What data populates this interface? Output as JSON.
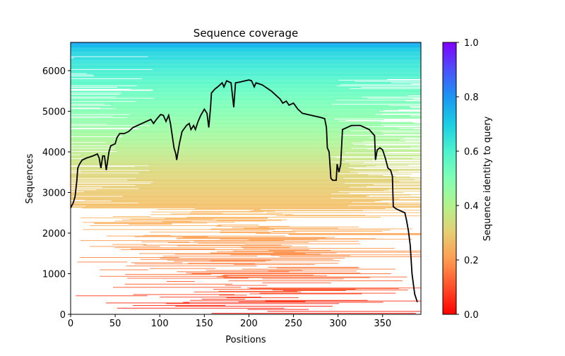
{
  "chart_data": {
    "type": "heatmap",
    "title": "Sequence coverage",
    "xlabel": "Positions",
    "ylabel": "Sequences",
    "xlim": [
      0,
      393
    ],
    "ylim": [
      0,
      6696
    ],
    "xticks": [
      0,
      50,
      100,
      150,
      200,
      250,
      300,
      350
    ],
    "yticks": [
      0,
      1000,
      2000,
      3000,
      4000,
      5000,
      6000
    ],
    "colorbar": {
      "label": "Sequence identity to query",
      "range": [
        0,
        1
      ],
      "ticks": [
        "0.0",
        "0.2",
        "0.4",
        "0.6",
        "0.8",
        "1.0"
      ],
      "colormap": "rainbow (red = 0, purple = 1)"
    },
    "identity_by_sequence_index": {
      "sequence": [
        0,
        600,
        1200,
        2300,
        3500,
        4500,
        5500,
        6000,
        6500,
        6696
      ],
      "identity": [
        0.02,
        0.1,
        0.17,
        0.25,
        0.32,
        0.44,
        0.55,
        0.62,
        0.7,
        0.8
      ]
    },
    "coverage_line": {
      "name": "coverage",
      "color": "#000000",
      "x": [
        0,
        3,
        5,
        7,
        8,
        10,
        13,
        18,
        25,
        30,
        32,
        34,
        36,
        38,
        40,
        43,
        45,
        50,
        52,
        55,
        60,
        65,
        70,
        80,
        90,
        93,
        97,
        101,
        104,
        107,
        110,
        112,
        116,
        118,
        119,
        122,
        125,
        130,
        133,
        135,
        138,
        140,
        143,
        146,
        150,
        153,
        155,
        157,
        158,
        162,
        165,
        170,
        172,
        175,
        180,
        183,
        185,
        190,
        200,
        203,
        206,
        208,
        215,
        225,
        235,
        238,
        242,
        245,
        250,
        255,
        260,
        270,
        280,
        285,
        287,
        288,
        290,
        292,
        294,
        298,
        299,
        301,
        303,
        305,
        310,
        315,
        325,
        335,
        341,
        342,
        344,
        347,
        350,
        353,
        356,
        359,
        361,
        362,
        365,
        370,
        375,
        377,
        379,
        381,
        383,
        386,
        389
      ],
      "y": [
        2620,
        2750,
        2900,
        3300,
        3600,
        3700,
        3800,
        3850,
        3900,
        3950,
        3850,
        3600,
        3900,
        3900,
        3550,
        4000,
        4150,
        4200,
        4350,
        4450,
        4450,
        4500,
        4600,
        4700,
        4800,
        4700,
        4820,
        4920,
        4900,
        4750,
        4900,
        4700,
        4100,
        3950,
        3800,
        4200,
        4500,
        4650,
        4700,
        4550,
        4650,
        4550,
        4750,
        4900,
        5050,
        4950,
        4600,
        5100,
        5450,
        5550,
        5600,
        5700,
        5600,
        5750,
        5700,
        5100,
        5700,
        5720,
        5770,
        5750,
        5600,
        5700,
        5650,
        5500,
        5300,
        5200,
        5250,
        5150,
        5200,
        5050,
        4950,
        4900,
        4850,
        4820,
        4600,
        4100,
        4000,
        3350,
        3300,
        3300,
        3700,
        3500,
        3700,
        4550,
        4600,
        4650,
        4650,
        4550,
        4400,
        3800,
        4050,
        4100,
        4050,
        3850,
        3600,
        3550,
        3400,
        2650,
        2600,
        2550,
        2500,
        2300,
        2050,
        1700,
        1000,
        500,
        300
      ]
    }
  }
}
